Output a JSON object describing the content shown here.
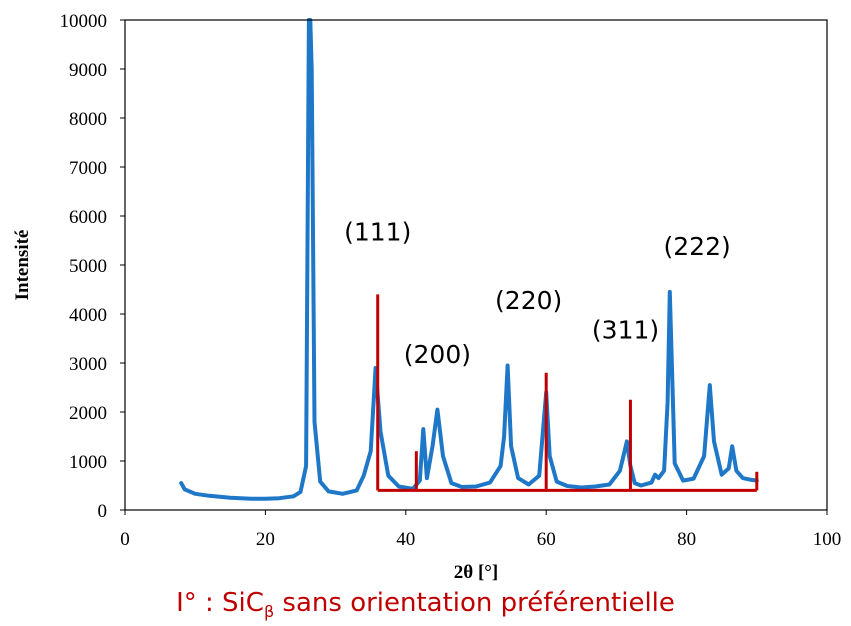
{
  "chart_data": {
    "type": "line",
    "xlabel": "2θ [°]",
    "ylabel": "Intensité",
    "xlim": [
      0,
      100
    ],
    "ylim": [
      0,
      10000
    ],
    "xticks": [
      "0",
      "20",
      "40",
      "60",
      "80",
      "100"
    ],
    "yticks": [
      "0",
      "1000",
      "2000",
      "3000",
      "4000",
      "5000",
      "6000",
      "7000",
      "8000",
      "9000",
      "10000"
    ],
    "grid": false,
    "legend": "none",
    "colors": {
      "pattern": "#1f77c8",
      "reference": "#c00000"
    },
    "series": [
      {
        "type": "line",
        "x": [
          8,
          8.5,
          10,
          12,
          15,
          18,
          20,
          22,
          24,
          25,
          25.8,
          26.2,
          26.4,
          26.6,
          27.0,
          27.8,
          29,
          31,
          33,
          34,
          35.0,
          35.7,
          36.4,
          37.5,
          39,
          41,
          42.0,
          42.5,
          43.0,
          43.8,
          44.5,
          45.3,
          46.5,
          48,
          50,
          52,
          53.5,
          54.0,
          54.5,
          55.0,
          56.0,
          57.5,
          59.0,
          60.0,
          60.5,
          61.5,
          63,
          65,
          67,
          69,
          70.5,
          71.5,
          72.0,
          72.6,
          73.5,
          75,
          75.5,
          76,
          76.8,
          77.3,
          77.6,
          78.3,
          79.5,
          81,
          82.5,
          83.3,
          83.9,
          85,
          86,
          86.5,
          87.1,
          88,
          89,
          90
        ],
        "y": [
          550,
          420,
          330,
          290,
          250,
          230,
          230,
          240,
          280,
          370,
          900,
          10000,
          10000,
          9000,
          1800,
          580,
          380,
          330,
          400,
          700,
          1200,
          2900,
          1600,
          700,
          480,
          430,
          600,
          1650,
          650,
          1300,
          2050,
          1100,
          550,
          470,
          480,
          560,
          900,
          1500,
          2950,
          1300,
          650,
          520,
          700,
          2400,
          1100,
          580,
          490,
          460,
          480,
          520,
          800,
          1400,
          900,
          550,
          500,
          560,
          720,
          650,
          800,
          2200,
          4450,
          950,
          600,
          640,
          1100,
          2550,
          1400,
          720,
          850,
          1300,
          800,
          650,
          620,
          600
        ]
      },
      {
        "type": "stick",
        "baseline": 400,
        "baseline_range": [
          36,
          90
        ],
        "x": [
          36,
          41.5,
          60,
          72,
          90
        ],
        "y": [
          4400,
          1200,
          2800,
          2250,
          780
        ]
      }
    ],
    "annotations": [
      {
        "text": "(111)",
        "x": 36,
        "y": 5500
      },
      {
        "text": "(200)",
        "x": 44.5,
        "y": 3000
      },
      {
        "text": "(220)",
        "x": 57.5,
        "y": 4100
      },
      {
        "text": "(311)",
        "x": 71.3,
        "y": 3500
      },
      {
        "text": "(222)",
        "x": 81.5,
        "y": 5200
      }
    ]
  },
  "caption": {
    "prefix": "I° : SiC",
    "subscript": "β",
    "suffix": " sans orientation préférentielle"
  }
}
